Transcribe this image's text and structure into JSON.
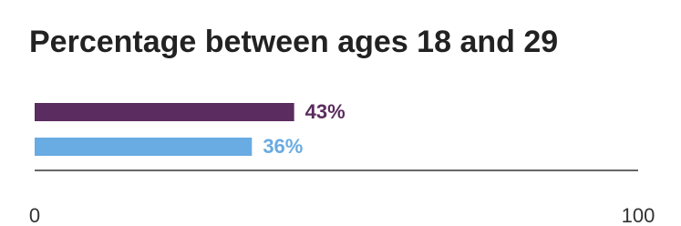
{
  "chart_data": {
    "type": "hbar",
    "title": "Percentage between ages 18 and 29",
    "values": [
      43,
      36
    ],
    "value_labels": [
      "43%",
      "36%"
    ],
    "colors": [
      "#5b2c5f",
      "#69abe3"
    ],
    "xlim": [
      0,
      100
    ],
    "xticks": [
      0,
      100
    ]
  }
}
